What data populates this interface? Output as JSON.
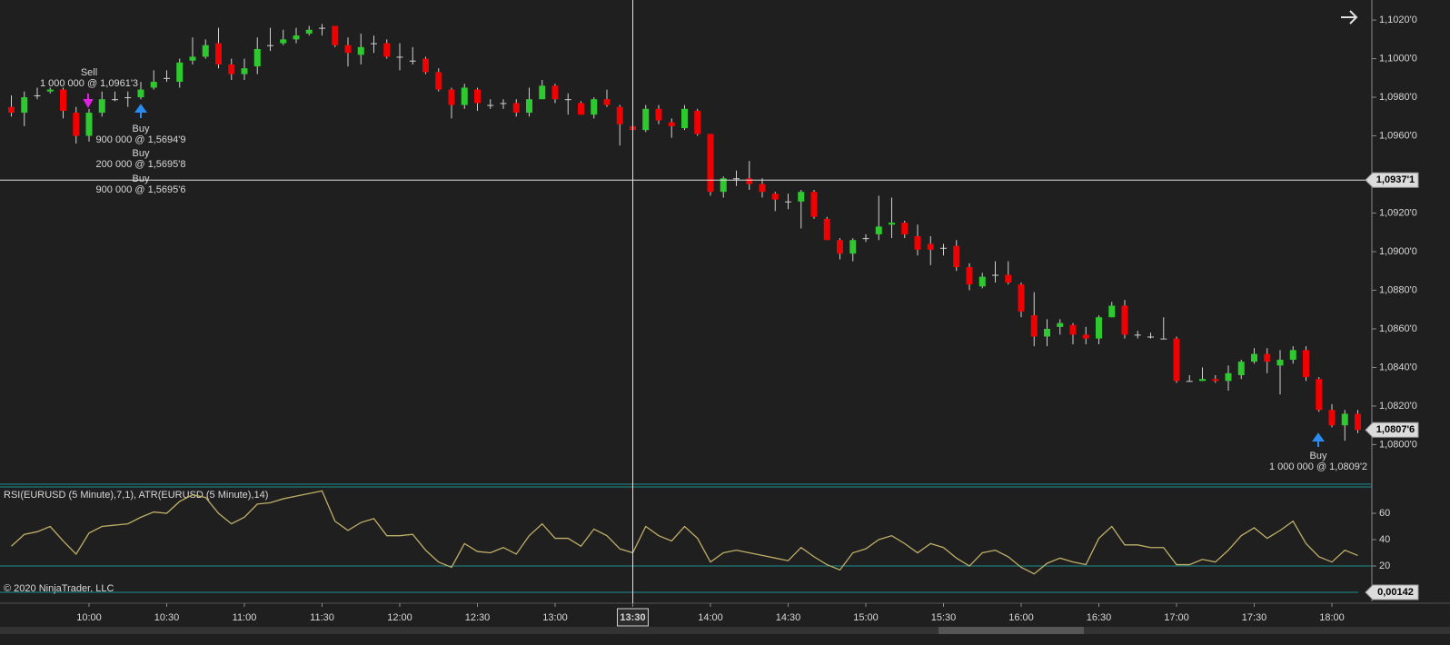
{
  "chart_data": [
    {
      "type": "candlestick",
      "categories": [
        null,
        null,
        null,
        null,
        null,
        null,
        "10:00",
        null,
        null,
        null,
        null,
        null,
        "10:30",
        null,
        null,
        null,
        null,
        null,
        "11:00",
        null,
        null,
        null,
        null,
        null,
        "11:30",
        null,
        null,
        null,
        null,
        null,
        "12:00",
        null,
        null,
        null,
        null,
        null,
        "12:30",
        null,
        null,
        null,
        null,
        null,
        "13:00",
        null,
        null,
        null,
        null,
        null,
        "13:30",
        null,
        null,
        null,
        null,
        null,
        "14:00",
        null,
        null,
        null,
        null,
        null,
        "14:30",
        null,
        null,
        null,
        null,
        null,
        "15:00",
        null,
        null,
        null,
        null,
        null,
        "15:30",
        null,
        null,
        null,
        null,
        null,
        "16:00",
        null,
        null,
        null,
        null,
        null,
        "16:30",
        null,
        null,
        null,
        null,
        null,
        "17:00",
        null,
        null,
        null,
        null,
        null,
        "17:30",
        null,
        null,
        null,
        null,
        null,
        "18:00",
        null,
        null
      ],
      "open": [
        1.0975,
        1.0972,
        1.0981,
        1.0983,
        1.0984,
        1.0972,
        1.096,
        1.0972,
        1.0979,
        1.098,
        1.098,
        1.0985,
        1.099,
        1.0988,
        1.0999,
        1.1001,
        1.1008,
        1.0997,
        1.0992,
        1.0996,
        1.1007,
        1.1008,
        1.101,
        1.1013,
        1.1016,
        1.1017,
        1.1007,
        1.1002,
        1.1008,
        1.1008,
        1.1001,
        1.0999,
        1.1,
        1.0993,
        1.0984,
        1.0976,
        1.0984,
        1.0976,
        1.0977,
        1.0977,
        1.0972,
        1.0979,
        1.0986,
        1.0979,
        1.0977,
        1.0971,
        1.0979,
        1.0975,
        1.0965,
        1.0963,
        1.0974,
        1.0967,
        1.0964,
        1.0973,
        1.0961,
        1.0931,
        1.0938,
        1.0938,
        1.0935,
        1.093,
        1.0926,
        1.0926,
        1.0931,
        1.0917,
        1.0906,
        1.0899,
        1.0907,
        1.0909,
        1.0914,
        1.0915,
        1.0908,
        1.0904,
        1.0902,
        1.0903,
        1.0892,
        1.0882,
        1.0888,
        1.0888,
        1.0883,
        1.0867,
        1.0856,
        1.0861,
        1.0862,
        1.0857,
        1.0855,
        1.0866,
        1.0872,
        1.0857,
        1.0856,
        1.0855,
        1.0855,
        1.0833,
        1.0833,
        1.0834,
        1.0833,
        1.0836,
        1.0843,
        1.0847,
        1.0841,
        1.0844,
        1.0849,
        1.0834,
        1.0818,
        1.081,
        1.0816
      ],
      "high": [
        1.0981,
        1.0983,
        1.0985,
        1.0985,
        1.0985,
        1.0975,
        1.0974,
        1.0983,
        1.0983,
        1.0983,
        1.0988,
        1.0994,
        1.0994,
        1.1,
        1.1011,
        1.101,
        1.1016,
        1.1,
        1.1,
        1.1011,
        1.1016,
        1.1015,
        1.1016,
        1.1017,
        1.1018,
        1.1017,
        1.1011,
        1.1013,
        1.1012,
        1.101,
        1.1008,
        1.1006,
        1.1001,
        1.0995,
        1.0985,
        1.0987,
        1.0985,
        1.0979,
        1.0979,
        1.0979,
        1.0985,
        1.0989,
        1.0987,
        1.0982,
        1.0978,
        1.098,
        1.0984,
        1.0976,
        1.0967,
        1.0976,
        1.0976,
        1.0969,
        1.0976,
        1.0974,
        1.0961,
        1.0939,
        1.0942,
        1.0947,
        1.0938,
        1.0931,
        1.093,
        1.0932,
        1.0932,
        1.0918,
        1.0907,
        1.0907,
        1.0909,
        1.0929,
        1.0928,
        1.0916,
        1.0914,
        1.0908,
        1.0904,
        1.0906,
        1.0894,
        1.0889,
        1.0895,
        1.0895,
        1.0884,
        1.0879,
        1.0865,
        1.0865,
        1.0863,
        1.0861,
        1.0867,
        1.0874,
        1.0875,
        1.0859,
        1.0858,
        1.0866,
        1.0856,
        1.0836,
        1.084,
        1.0836,
        1.0841,
        1.0844,
        1.085,
        1.085,
        1.0849,
        1.0851,
        1.0851,
        1.0835,
        1.0821,
        1.0818,
        1.0818
      ],
      "low": [
        1.097,
        1.0965,
        1.0979,
        1.0982,
        1.0969,
        1.0956,
        1.0957,
        1.097,
        1.0978,
        1.0975,
        1.0979,
        1.0984,
        1.0988,
        1.0985,
        1.0997,
        1.1,
        1.0995,
        1.0989,
        1.0989,
        1.0992,
        1.1004,
        1.1007,
        1.1008,
        1.1012,
        1.1012,
        1.1006,
        1.0996,
        1.0997,
        1.1003,
        1.1,
        1.0994,
        1.0997,
        1.0992,
        1.0983,
        1.0969,
        1.0974,
        1.0973,
        1.0974,
        1.0974,
        1.097,
        1.097,
        1.0979,
        1.0977,
        1.0971,
        1.0971,
        1.0969,
        1.0975,
        1.0955,
        1.0962,
        1.0962,
        1.0966,
        1.0959,
        1.0963,
        1.096,
        1.0929,
        1.0928,
        1.0934,
        1.0932,
        1.0928,
        1.0921,
        1.0922,
        1.0912,
        1.0917,
        1.0906,
        1.0896,
        1.0895,
        1.0905,
        1.0906,
        1.0907,
        1.0907,
        1.0898,
        1.0893,
        1.0898,
        1.089,
        1.088,
        1.0881,
        1.0884,
        1.0883,
        1.0866,
        1.0851,
        1.0851,
        1.0857,
        1.0852,
        1.0852,
        1.0852,
        1.0866,
        1.0855,
        1.0855,
        1.0855,
        1.0855,
        1.0832,
        1.0833,
        1.0833,
        1.0832,
        1.0828,
        1.0834,
        1.0842,
        1.0837,
        1.0826,
        1.0842,
        1.0833,
        1.0817,
        1.0809,
        1.0802,
        1.0806
      ],
      "close": [
        1.0972,
        1.098,
        1.0981,
        1.0984,
        1.0973,
        1.096,
        1.0972,
        1.0979,
        1.0979,
        1.098,
        1.0984,
        1.0988,
        1.099,
        1.0998,
        1.1001,
        1.1007,
        1.0997,
        1.0992,
        1.0995,
        1.1005,
        1.1007,
        1.101,
        1.1012,
        1.1015,
        1.1016,
        1.1007,
        1.1003,
        1.1006,
        1.1008,
        1.1001,
        1.1001,
        1.0999,
        1.0993,
        1.0984,
        1.0976,
        1.0985,
        1.0977,
        1.0976,
        1.0977,
        1.0972,
        1.0979,
        1.0986,
        1.0979,
        1.0979,
        1.0971,
        1.0979,
        1.0976,
        1.0966,
        1.0963,
        1.0974,
        1.0968,
        1.0965,
        1.0974,
        1.0961,
        1.0931,
        1.0938,
        1.0938,
        1.0935,
        1.0931,
        1.0927,
        1.0926,
        1.0931,
        1.0918,
        1.0906,
        1.0899,
        1.0906,
        1.0907,
        1.0913,
        1.0915,
        1.0909,
        1.0901,
        1.0901,
        1.0902,
        1.0892,
        1.0883,
        1.0887,
        1.0888,
        1.0884,
        1.0869,
        1.0856,
        1.086,
        1.0863,
        1.0857,
        1.0855,
        1.0866,
        1.0872,
        1.0857,
        1.0857,
        1.0856,
        1.0855,
        1.0833,
        1.0833,
        1.0834,
        1.0833,
        1.0837,
        1.0843,
        1.0847,
        1.0843,
        1.0844,
        1.0849,
        1.0835,
        1.0818,
        1.081,
        1.0816,
        1.08076
      ],
      "up_color": "#2ec92e",
      "down_color": "#f00000",
      "wick_color": "#d0d0d0",
      "ylim": [
        1.07795,
        1.10304
      ],
      "yticks": [
        {
          "value": 1.102,
          "label": "1,1020'0"
        },
        {
          "value": 1.1,
          "label": "1,1000'0"
        },
        {
          "value": 1.098,
          "label": "1,0980'0"
        },
        {
          "value": 1.096,
          "label": "1,0960'0"
        },
        {
          "value": 1.092,
          "label": "1,0920'0"
        },
        {
          "value": 1.09,
          "label": "1,0900'0"
        },
        {
          "value": 1.088,
          "label": "1,0880'0"
        },
        {
          "value": 1.086,
          "label": "1,0860'0"
        },
        {
          "value": 1.084,
          "label": "1,0840'0"
        },
        {
          "value": 1.082,
          "label": "1,0820'0"
        },
        {
          "value": 1.08,
          "label": "1,0800'0"
        }
      ],
      "crosshair": {
        "x": "13:30",
        "value": 1.09371,
        "label": "1,0937'1"
      },
      "last_price": {
        "value": 1.08076,
        "label": "1,0807'6"
      },
      "executions": [
        {
          "side": "Sell",
          "detail": "1 000 000 @ 1,0961'3"
        },
        {
          "side": "Buy",
          "detail": "900 000 @ 1,5694'9"
        },
        {
          "side": "Buy",
          "detail": "200 000 @ 1,5695'8"
        },
        {
          "side": "Buy",
          "detail": "900 000 @ 1,5695'6"
        },
        {
          "side": "Buy",
          "detail": "1 000 000 @ 1,0809'2"
        }
      ]
    },
    {
      "type": "line",
      "title": "RSI(EURUSD (5 Minute),7,1), ATR(EURUSD (5 Minute),14)",
      "color": "#bfae68",
      "values": [
        35,
        44,
        46,
        50,
        39,
        29,
        45,
        50,
        51,
        52,
        57,
        61,
        60,
        69,
        74,
        72,
        60,
        52,
        57,
        67,
        68,
        71,
        73,
        75,
        77,
        54,
        47,
        53,
        56,
        43,
        43,
        44,
        32,
        23,
        19,
        37,
        31,
        30,
        34,
        29,
        43,
        52,
        41,
        41,
        35,
        48,
        43,
        33,
        30,
        50,
        43,
        39,
        50,
        41,
        23,
        30,
        32,
        30,
        28,
        26,
        24,
        34,
        27,
        21,
        17,
        30,
        33,
        40,
        43,
        37,
        30,
        37,
        34,
        26,
        20,
        30,
        32,
        27,
        19,
        14,
        22,
        26,
        23,
        21,
        41,
        50,
        36,
        36,
        34,
        34,
        21,
        21,
        25,
        23,
        32,
        43,
        49,
        41,
        47,
        54,
        37,
        27,
        23,
        32,
        28
      ],
      "ylim": [
        -5.5,
        80.7
      ],
      "yticks": [
        60,
        40,
        20
      ],
      "lines": [
        {
          "value": 20,
          "color": "#1d8f8f"
        }
      ],
      "atr": {
        "value": 0.00142,
        "label": "0,00142",
        "color": "#1d8f8f"
      }
    }
  ],
  "footer": "© 2020 NinjaTrader, LLC"
}
